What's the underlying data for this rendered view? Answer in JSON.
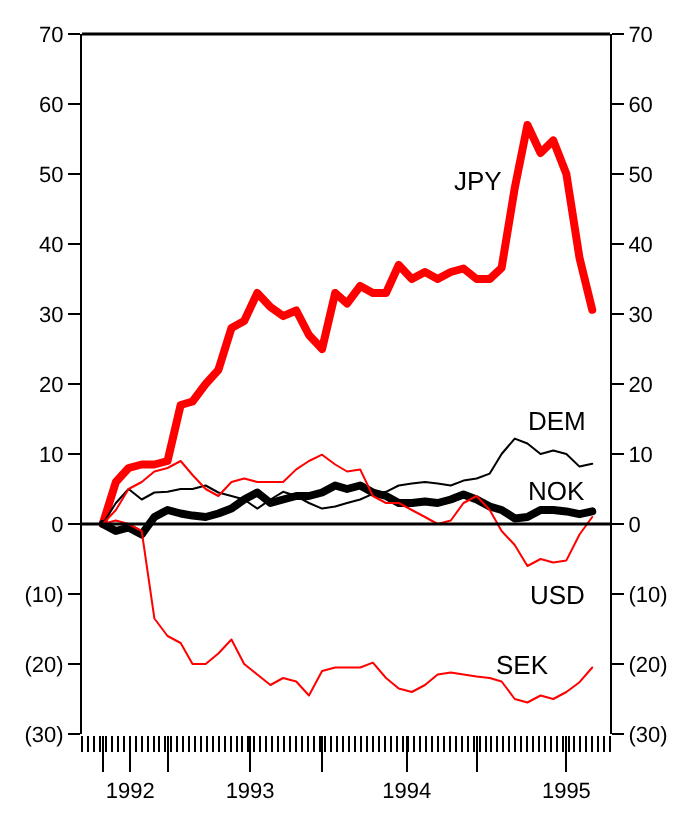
{
  "chart_data": {
    "type": "line",
    "x": [
      "1992-08-01",
      "1992-09-01",
      "1992-10-01",
      "1992-11-01",
      "1992-12-01",
      "1993-01-01",
      "1993-02-01",
      "1993-03-01",
      "1993-04-01",
      "1993-05-01",
      "1993-06-01",
      "1993-07-01",
      "1993-08-01",
      "1993-09-01",
      "1993-10-01",
      "1993-11-01",
      "1993-12-01",
      "1994-01-01",
      "1994-02-01",
      "1994-03-01",
      "1994-04-01",
      "1994-05-01",
      "1994-06-01",
      "1994-07-01",
      "1994-08-01",
      "1994-09-01",
      "1994-10-01",
      "1994-11-01",
      "1994-12-01",
      "1995-01-01",
      "1995-02-01",
      "1995-03-01",
      "1995-04-01",
      "1995-05-01",
      "1995-06-01",
      "1995-07-01",
      "1995-08-01",
      "1995-09-01",
      "1995-10-01"
    ],
    "series": [
      {
        "name": "JPY",
        "color": "#ff0000",
        "values": [
          0,
          6,
          8,
          8.5,
          8.5,
          9,
          17,
          17.5,
          20,
          22,
          28,
          29,
          33,
          31,
          29.7,
          30.5,
          27,
          25,
          33,
          31.5,
          34,
          33,
          33,
          37,
          35,
          36,
          35,
          36,
          36.5,
          35,
          35,
          36.6,
          48,
          57,
          53,
          54.8,
          50,
          38,
          30.6
        ]
      },
      {
        "name": "DEM",
        "color": "#000000",
        "values": [
          0,
          3,
          5,
          3.5,
          4.5,
          4.6,
          5,
          5,
          5.5,
          4.5,
          4,
          3.5,
          2.2,
          3.5,
          4.6,
          4,
          3,
          2.2,
          2.5,
          3,
          3.5,
          4.3,
          4.6,
          5.5,
          5.8,
          6,
          5.8,
          5.5,
          6.2,
          6.5,
          7.2,
          10,
          12.2,
          11.5,
          10,
          10.5,
          10,
          8.2,
          8.6
        ]
      },
      {
        "name": "NOK",
        "color": "#000000",
        "values": [
          0,
          -1,
          -0.5,
          -1.5,
          1,
          2,
          1.5,
          1.2,
          1,
          1.5,
          2.2,
          3.5,
          4.5,
          3,
          3.5,
          4,
          4,
          4.5,
          5.5,
          5,
          5.5,
          4.5,
          4,
          3,
          3,
          3.2,
          3,
          3.5,
          4.2,
          3.5,
          2.5,
          2,
          0.8,
          1,
          2,
          2,
          1.8,
          1.4,
          1.8
        ]
      },
      {
        "name": "USD",
        "color": "#ff0000",
        "values": [
          0,
          2,
          5,
          6,
          7.5,
          8,
          9,
          7,
          5,
          4,
          6,
          6.5,
          6,
          6,
          6,
          7.8,
          9,
          9.9,
          8.5,
          7.5,
          7.8,
          4,
          3,
          3,
          2,
          1,
          0,
          0.5,
          3,
          4,
          2,
          -1,
          -3,
          -6,
          -5,
          -5.5,
          -5.2,
          -1.5,
          1
        ]
      },
      {
        "name": "SEK",
        "color": "#ff0000",
        "values": [
          0,
          0.5,
          0,
          -1,
          -13.5,
          -16,
          -17,
          -20,
          -20,
          -18.5,
          -16.5,
          -20,
          -21.5,
          -23,
          -22,
          -22.5,
          -24.5,
          -21,
          -20.5,
          -20.5,
          -20.5,
          -19.8,
          -22,
          -23.5,
          -24,
          -23,
          -21.5,
          -21.2,
          -21.5,
          -21.8,
          -22,
          -22.5,
          -25,
          -25.5,
          -24.5,
          -25,
          -24,
          -22.6,
          -20.5
        ]
      }
    ],
    "xlim": [
      "1992-06-13",
      "1995-11-12"
    ],
    "xticks": [
      {
        "value": "1992-08-01",
        "label": null
      },
      {
        "value": "1992-10-05",
        "label": "1992"
      },
      {
        "value": "1993-01-01",
        "label": null
      },
      {
        "value": "1993-07-15",
        "label": "1993"
      },
      {
        "value": "1994-01-01",
        "label": null
      },
      {
        "value": "1994-07-20",
        "label": "1994"
      },
      {
        "value": "1995-01-01",
        "label": null
      },
      {
        "value": "1995-08-01",
        "label": "1995"
      }
    ],
    "ylim": [
      -30,
      70
    ],
    "yticks": [
      {
        "value": -30,
        "label": "(30)"
      },
      {
        "value": -20,
        "label": "(20)"
      },
      {
        "value": -10,
        "label": "(10)"
      },
      0,
      10,
      20,
      30,
      40,
      50,
      60,
      70
    ],
    "y2lim": [
      -30,
      70
    ],
    "y2ticks": [
      {
        "value": -30,
        "label": "(30)"
      },
      {
        "value": -20,
        "label": "(20)"
      },
      {
        "value": -10,
        "label": "(10)"
      },
      0,
      10,
      20,
      30,
      40,
      50,
      60,
      70
    ],
    "ref_lines": [
      {
        "axis": "y",
        "value": 0,
        "color": "#000000"
      }
    ],
    "grid": false,
    "legend": false,
    "marker": "none",
    "line_style": "solid"
  }
}
